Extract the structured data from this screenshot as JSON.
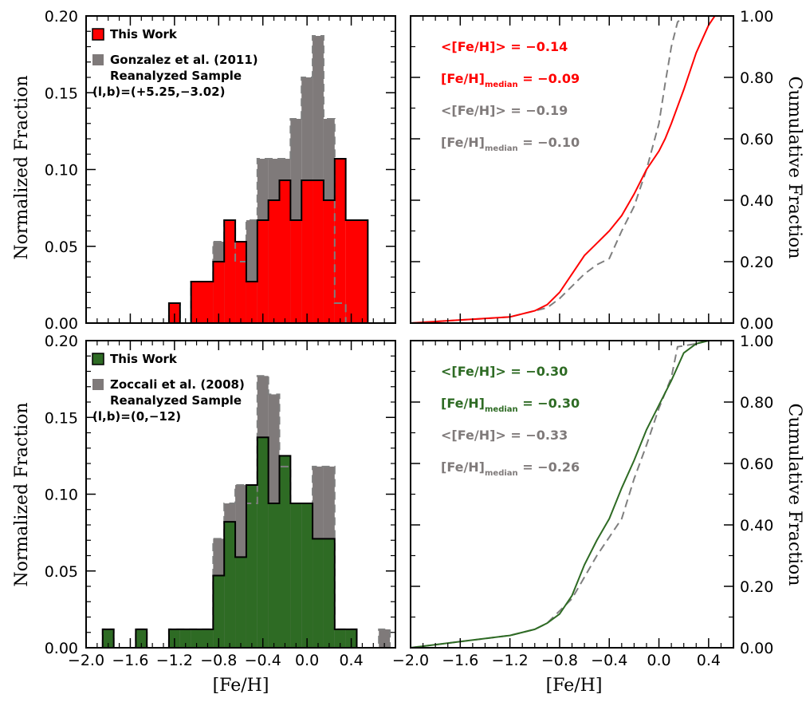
{
  "colors": {
    "red": "#ff0000",
    "green": "#2e6b24",
    "gray": "#7f7a7a",
    "gray_line": "#7f7f7f",
    "black": "#000000"
  },
  "labels": {
    "ylabel_left": "Normalized Fraction",
    "ylabel_right": "Cumulative Fraction",
    "xlabel": "[Fe/H]",
    "hist_xticks": [
      "−2.0",
      "−1.6",
      "−1.2",
      "−0.8",
      "−0.4",
      "0.0",
      "0.4"
    ],
    "hist_yticks": [
      "0.00",
      "0.05",
      "0.10",
      "0.15",
      "0.20"
    ],
    "cdf_xticks": [
      "−2.0",
      "−1.6",
      "−1.2",
      "−0.8",
      "−0.4",
      "0.0",
      "0.4"
    ],
    "cdf_yticks": [
      "0.00",
      "0.20",
      "0.40",
      "0.60",
      "0.80",
      "1.00"
    ]
  },
  "chart_data": [
    {
      "type": "bar",
      "panel": "top-left",
      "subtype": "histogram",
      "xlim": [
        -2.0,
        0.8
      ],
      "ylim": [
        0,
        0.2
      ],
      "xlabel": "",
      "ylabel": "Normalized Fraction",
      "bin_width": 0.1,
      "series": [
        {
          "name": "Gonzalez et al. (2011) Reanalyzed Sample",
          "bin_left": [
            -1.25,
            -1.15,
            -1.05,
            -0.95,
            -0.85,
            -0.75,
            -0.65,
            -0.55,
            -0.45,
            -0.35,
            -0.25,
            -0.15,
            -0.05,
            0.05,
            0.15,
            0.25,
            0.35,
            0.45,
            0.55
          ],
          "values": [
            0.013,
            0,
            0.027,
            0.027,
            0.053,
            0.067,
            0.04,
            0.067,
            0.107,
            0.107,
            0.107,
            0.133,
            0.16,
            0.187,
            0.133,
            0.013,
            0,
            0,
            0
          ]
        },
        {
          "name": "This Work",
          "bin_left": [
            -1.25,
            -1.15,
            -1.05,
            -0.95,
            -0.85,
            -0.75,
            -0.65,
            -0.55,
            -0.45,
            -0.35,
            -0.25,
            -0.15,
            -0.05,
            0.05,
            0.15,
            0.25,
            0.35,
            0.45,
            0.55
          ],
          "values": [
            0.013,
            0,
            0.027,
            0.027,
            0.04,
            0.067,
            0.053,
            0.027,
            0.067,
            0.08,
            0.093,
            0.067,
            0.093,
            0.093,
            0.08,
            0.107,
            0.067,
            0.067,
            0
          ]
        }
      ],
      "legend": {
        "entries": [
          "This Work",
          "Gonzalez et al. (2011)",
          "Reanalyzed Sample",
          "(l,b)=(+5.25,−3.02)"
        ]
      }
    },
    {
      "type": "line",
      "panel": "top-right",
      "xlim": [
        -2.0,
        0.6
      ],
      "ylim": [
        0,
        1
      ],
      "ylabel": "Cumulative Fraction",
      "series": [
        {
          "name": "This Work",
          "x": [
            -2.0,
            -1.6,
            -1.2,
            -1.0,
            -0.9,
            -0.8,
            -0.7,
            -0.6,
            -0.5,
            -0.4,
            -0.3,
            -0.2,
            -0.1,
            0.0,
            0.05,
            0.1,
            0.2,
            0.3,
            0.4,
            0.45,
            0.6
          ],
          "y": [
            0,
            0.01,
            0.02,
            0.04,
            0.06,
            0.1,
            0.16,
            0.22,
            0.26,
            0.3,
            0.35,
            0.42,
            0.5,
            0.56,
            0.6,
            0.65,
            0.76,
            0.88,
            0.97,
            1.0,
            1.0
          ]
        },
        {
          "name": "Gonzalez et al. (2011) Reanalyzed Sample",
          "x": [
            -2.0,
            -1.6,
            -1.2,
            -1.0,
            -0.9,
            -0.8,
            -0.7,
            -0.6,
            -0.5,
            -0.4,
            -0.3,
            -0.2,
            -0.1,
            0.0,
            0.05,
            0.1,
            0.15,
            0.2,
            0.3,
            0.6
          ],
          "y": [
            0,
            0.01,
            0.02,
            0.04,
            0.05,
            0.08,
            0.12,
            0.16,
            0.19,
            0.21,
            0.3,
            0.38,
            0.5,
            0.65,
            0.78,
            0.9,
            0.98,
            1.0,
            1.0,
            1.0
          ]
        }
      ],
      "annotations": {
        "this_mean": "<[Fe/H]> = −0.14",
        "this_median_a": "[Fe/H]",
        "this_median_sub": "median",
        "this_median_b": " = −0.09",
        "ref_mean": "<[Fe/H]> = −0.19",
        "ref_median_a": "[Fe/H]",
        "ref_median_sub": "median",
        "ref_median_b": " = −0.10"
      }
    },
    {
      "type": "bar",
      "panel": "bottom-left",
      "subtype": "histogram",
      "xlim": [
        -2.0,
        0.8
      ],
      "ylim": [
        0,
        0.2
      ],
      "xlabel": "[Fe/H]",
      "ylabel": "Normalized Fraction",
      "bin_width": 0.1,
      "series": [
        {
          "name": "Zoccali et al. (2008) Reanalyzed Sample",
          "bin_left": [
            -1.85,
            -1.75,
            -1.65,
            -1.55,
            -1.45,
            -1.35,
            -1.25,
            -1.15,
            -1.05,
            -0.95,
            -0.85,
            -0.75,
            -0.65,
            -0.55,
            -0.45,
            -0.35,
            -0.25,
            -0.15,
            -0.05,
            0.05,
            0.15,
            0.25,
            0.35,
            0.45,
            0.55,
            0.65
          ],
          "values": [
            0.012,
            0,
            0,
            0.012,
            0,
            0,
            0.012,
            0.012,
            0.012,
            0.012,
            0.071,
            0.094,
            0.106,
            0.094,
            0.177,
            0.165,
            0.118,
            0.094,
            0.094,
            0.118,
            0.118,
            0.012,
            0.012,
            0,
            0,
            0.012
          ]
        },
        {
          "name": "This Work",
          "bin_left": [
            -1.85,
            -1.75,
            -1.65,
            -1.55,
            -1.45,
            -1.35,
            -1.25,
            -1.15,
            -1.05,
            -0.95,
            -0.85,
            -0.75,
            -0.65,
            -0.55,
            -0.45,
            -0.35,
            -0.25,
            -0.15,
            -0.05,
            0.05,
            0.15,
            0.25,
            0.35,
            0.45,
            0.55,
            0.65
          ],
          "values": [
            0.012,
            0,
            0,
            0.012,
            0,
            0,
            0.012,
            0.012,
            0.012,
            0.012,
            0.047,
            0.082,
            0.059,
            0.106,
            0.137,
            0.094,
            0.125,
            0.094,
            0.094,
            0.071,
            0.071,
            0.012,
            0.012,
            0,
            0,
            0
          ]
        }
      ],
      "legend": {
        "entries": [
          "This Work",
          "Zoccali et al. (2008)",
          "Reanalyzed Sample",
          "(l,b)=(0,−12)"
        ]
      }
    },
    {
      "type": "line",
      "panel": "bottom-right",
      "xlim": [
        -2.0,
        0.6
      ],
      "ylim": [
        0,
        1
      ],
      "xlabel": "[Fe/H]",
      "ylabel": "Cumulative Fraction",
      "series": [
        {
          "name": "This Work",
          "x": [
            -2.0,
            -1.6,
            -1.2,
            -1.0,
            -0.9,
            -0.8,
            -0.7,
            -0.6,
            -0.5,
            -0.4,
            -0.3,
            -0.2,
            -0.1,
            0.0,
            0.1,
            0.2,
            0.3,
            0.4,
            0.6
          ],
          "y": [
            0,
            0.02,
            0.04,
            0.06,
            0.08,
            0.11,
            0.17,
            0.27,
            0.35,
            0.42,
            0.52,
            0.61,
            0.71,
            0.79,
            0.87,
            0.96,
            0.99,
            1.0,
            1.0
          ]
        },
        {
          "name": "Zoccali et al. (2008) Reanalyzed Sample",
          "x": [
            -2.0,
            -1.6,
            -1.2,
            -1.0,
            -0.9,
            -0.8,
            -0.7,
            -0.6,
            -0.5,
            -0.4,
            -0.3,
            -0.2,
            -0.1,
            0.0,
            0.1,
            0.15,
            0.3,
            0.4,
            0.6
          ],
          "y": [
            0,
            0.02,
            0.04,
            0.06,
            0.08,
            0.12,
            0.16,
            0.23,
            0.3,
            0.36,
            0.42,
            0.55,
            0.66,
            0.78,
            0.88,
            0.98,
            0.99,
            1.0,
            1.0
          ]
        }
      ],
      "annotations": {
        "this_mean": "<[Fe/H]> = −0.30",
        "this_median_a": "[Fe/H]",
        "this_median_sub": "median",
        "this_median_b": " = −0.30",
        "ref_mean": "<[Fe/H]> = −0.33",
        "ref_median_a": "[Fe/H]",
        "ref_median_sub": "median",
        "ref_median_b": " = −0.26"
      }
    }
  ]
}
